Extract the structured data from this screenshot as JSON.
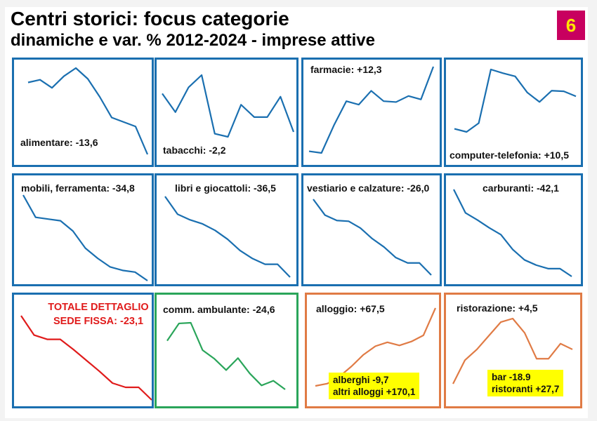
{
  "header": {
    "title": "Centri storici: focus categorie",
    "subtitle": "dinamiche e var. % 2012-2024 - imprese attive",
    "badge": "6"
  },
  "colors": {
    "blue": "#1a6fb0",
    "red": "#e01b1b",
    "green": "#2aa55a",
    "orange": "#e07b45",
    "badge_bg": "#c8005f",
    "badge_fg": "#ffe600",
    "note_bg": "#ffff00"
  },
  "chart_data": [
    {
      "type": "line",
      "title": "alimentare: -13,6",
      "period": "2012-2024",
      "series": [
        {
          "name": "alimentare",
          "values": [
            80,
            83,
            74,
            87,
            96,
            84,
            64,
            41,
            36,
            31,
            0
          ]
        }
      ]
    },
    {
      "type": "line",
      "title": "tabacchi: -2,2",
      "period": "2012-2024",
      "series": [
        {
          "name": "tabacchi",
          "values": [
            70,
            40,
            80,
            100,
            5,
            0,
            52,
            32,
            32,
            65,
            8
          ]
        }
      ]
    },
    {
      "type": "line",
      "title": "farmacie: +12,3",
      "period": "2012-2024",
      "series": [
        {
          "name": "farmacie",
          "values": [
            2,
            0,
            32,
            60,
            56,
            72,
            60,
            59,
            66,
            62,
            100
          ]
        }
      ]
    },
    {
      "type": "line",
      "title": "computer-telefonia: +10,5",
      "period": "2012-2024",
      "series": [
        {
          "name": "computer-telefonia",
          "values": [
            5,
            0,
            14,
            100,
            94,
            89,
            63,
            48,
            66,
            65,
            57
          ]
        }
      ]
    },
    {
      "type": "line",
      "title": "mobili, ferramenta: -34,8",
      "period": "2012-2024",
      "series": [
        {
          "name": "mobili, ferramenta",
          "values": [
            100,
            74,
            72,
            70,
            58,
            38,
            26,
            16,
            12,
            10,
            0
          ]
        }
      ]
    },
    {
      "type": "line",
      "title": "libri e giocattoli: -36,5",
      "period": "2012-2024",
      "series": [
        {
          "name": "libri e giocattoli",
          "values": [
            100,
            78,
            71,
            66,
            58,
            47,
            33,
            23,
            16,
            16,
            0
          ]
        }
      ]
    },
    {
      "type": "line",
      "title": "vestiario e calzature: -26,0",
      "period": "2012-2024",
      "series": [
        {
          "name": "vestiario e calzature",
          "values": [
            100,
            79,
            72,
            71,
            62,
            48,
            37,
            23,
            16,
            16,
            0
          ]
        }
      ]
    },
    {
      "type": "line",
      "title": "carburanti: -42,1",
      "period": "2012-2024",
      "series": [
        {
          "name": "carburanti",
          "values": [
            100,
            73,
            65,
            56,
            48,
            31,
            19,
            13,
            9,
            9,
            0
          ]
        }
      ]
    },
    {
      "type": "line",
      "title": "TOTALE DETTAGLIO SEDE FISSA: -23,1",
      "period": "2012-2024",
      "series": [
        {
          "name": "totale dettaglio sede fissa",
          "values": [
            100,
            77,
            72,
            72,
            60,
            47,
            34,
            20,
            15,
            15,
            0
          ]
        }
      ]
    },
    {
      "type": "line",
      "title": "comm. ambulante: -24,6",
      "period": "2012-2024",
      "series": [
        {
          "name": "comm. ambulante",
          "values": [
            73,
            99,
            100,
            59,
            46,
            29,
            47,
            24,
            6,
            13,
            0
          ]
        }
      ]
    },
    {
      "type": "line",
      "title": "alloggio: +67,5",
      "period": "2012-2024",
      "notes": [
        "alberghi -9,7",
        "altri alloggi +170,1"
      ],
      "series": [
        {
          "name": "alloggio",
          "values": [
            0,
            3,
            12,
            25,
            40,
            51,
            56,
            52,
            57,
            65,
            100
          ]
        }
      ]
    },
    {
      "type": "line",
      "title": "ristorazione: +4,5",
      "period": "2012-2024",
      "notes": [
        "bar -18.9",
        "ristoranti +27,7"
      ],
      "series": [
        {
          "name": "ristorazione",
          "values": [
            0,
            33,
            48,
            67,
            86,
            91,
            71,
            35,
            35,
            56,
            48
          ]
        }
      ]
    }
  ],
  "panels": [
    {
      "label": "alimentare: -13,6"
    },
    {
      "label": "tabacchi: -2,2"
    },
    {
      "label": "farmacie: +12,3"
    },
    {
      "label": "computer-telefonia: +10,5"
    },
    {
      "label": "mobili, ferramenta: -34,8"
    },
    {
      "label": "libri e giocattoli: -36,5"
    },
    {
      "label": "vestiario e calzature: -26,0"
    },
    {
      "label": "carburanti: -42,1"
    },
    {
      "label_line1": "TOTALE DETTAGLIO",
      "label_line2": "SEDE FISSA: -23,1"
    },
    {
      "label": "comm. ambulante: -24,6"
    },
    {
      "label": "alloggio: +67,5",
      "note_line1": "alberghi -9,7",
      "note_line2": "altri alloggi +170,1"
    },
    {
      "label": "ristorazione: +4,5",
      "note_line1": "bar -18.9",
      "note_line2": "ristoranti +27,7"
    }
  ]
}
